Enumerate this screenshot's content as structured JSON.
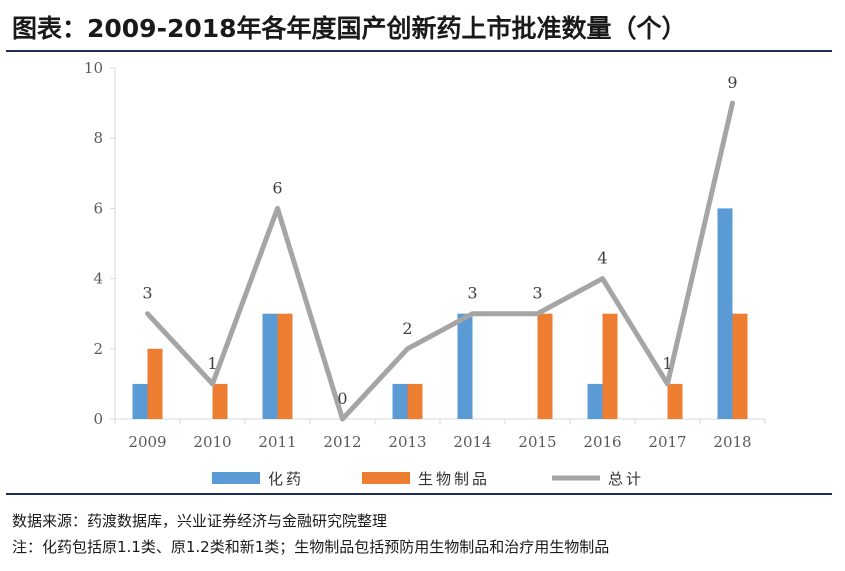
{
  "header": {
    "title": "图表：2009-2018年各年度国产创新药上市批准数量（个）"
  },
  "footer": {
    "source": "数据来源：药渡数据库，兴业证券经济与金融研究院整理",
    "note": "注：化药包括原1.1类、原1.2类和新1类；生物制品包括预防用生物制品和治疗用生物制品"
  },
  "colors": {
    "chemical": "#5B9BD5",
    "biological": "#ED7D31",
    "total": "#A5A5A5",
    "axis": "#D9D9D9"
  },
  "chart_data": {
    "type": "bar",
    "categories": [
      "2009",
      "2010",
      "2011",
      "2012",
      "2013",
      "2014",
      "2015",
      "2016",
      "2017",
      "2018"
    ],
    "series": [
      {
        "name": "化药",
        "type": "bar",
        "values": [
          1,
          0,
          3,
          0,
          1,
          3,
          0,
          1,
          0,
          6
        ]
      },
      {
        "name": "生物制品",
        "type": "bar",
        "values": [
          2,
          1,
          3,
          0,
          1,
          0,
          3,
          3,
          1,
          3
        ]
      },
      {
        "name": "总计",
        "type": "line",
        "values": [
          3,
          1,
          6,
          0,
          2,
          3,
          3,
          4,
          1,
          9
        ]
      }
    ],
    "yticks": [
      "0",
      "2",
      "4",
      "6",
      "8",
      "10"
    ],
    "ylim": [
      0,
      10
    ],
    "legend_position": "bottom",
    "grid": false,
    "data_labels_series": "总计"
  }
}
